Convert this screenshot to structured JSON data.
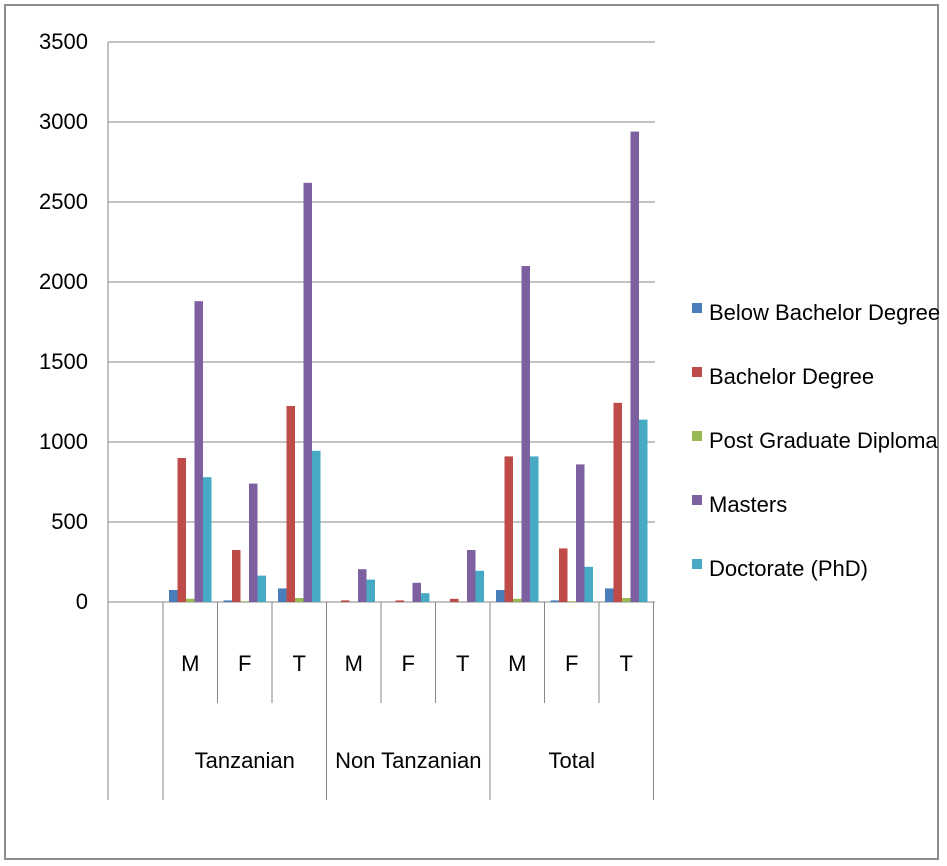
{
  "chart_data": {
    "type": "bar",
    "title": "",
    "xlabel": "",
    "ylabel": "",
    "ylim": [
      0,
      3500
    ],
    "yticks": [
      0,
      500,
      1000,
      1500,
      2000,
      2500,
      3000,
      3500
    ],
    "grid": true,
    "legend_position": "right",
    "groups": [
      {
        "label": "Tanzanian",
        "subcategories": [
          "M",
          "F",
          "T"
        ]
      },
      {
        "label": "Non Tanzanian",
        "subcategories": [
          "M",
          "F",
          "T"
        ]
      },
      {
        "label": "Total",
        "subcategories": [
          "M",
          "F",
          "T"
        ]
      }
    ],
    "categories": [
      "M",
      "F",
      "T",
      "M",
      "F",
      "T",
      "M",
      "F",
      "T"
    ],
    "series": [
      {
        "name": "Below Bachelor Degree",
        "color": "#4a7ebb",
        "values": [
          75,
          10,
          85,
          0,
          0,
          0,
          75,
          10,
          85
        ]
      },
      {
        "name": "Bachelor Degree",
        "color": "#be4b48",
        "values": [
          900,
          325,
          1225,
          10,
          10,
          20,
          910,
          335,
          1245
        ]
      },
      {
        "name": "Post Graduate Diploma",
        "color": "#98b954",
        "values": [
          20,
          5,
          25,
          0,
          0,
          0,
          20,
          5,
          25
        ]
      },
      {
        "name": "Masters",
        "color": "#7d60a0",
        "values": [
          1880,
          740,
          2620,
          205,
          120,
          325,
          2100,
          860,
          2940
        ]
      },
      {
        "name": "Doctorate (PhD)",
        "color": "#46aac5",
        "values": [
          780,
          165,
          945,
          140,
          55,
          195,
          910,
          220,
          1140
        ]
      }
    ]
  }
}
